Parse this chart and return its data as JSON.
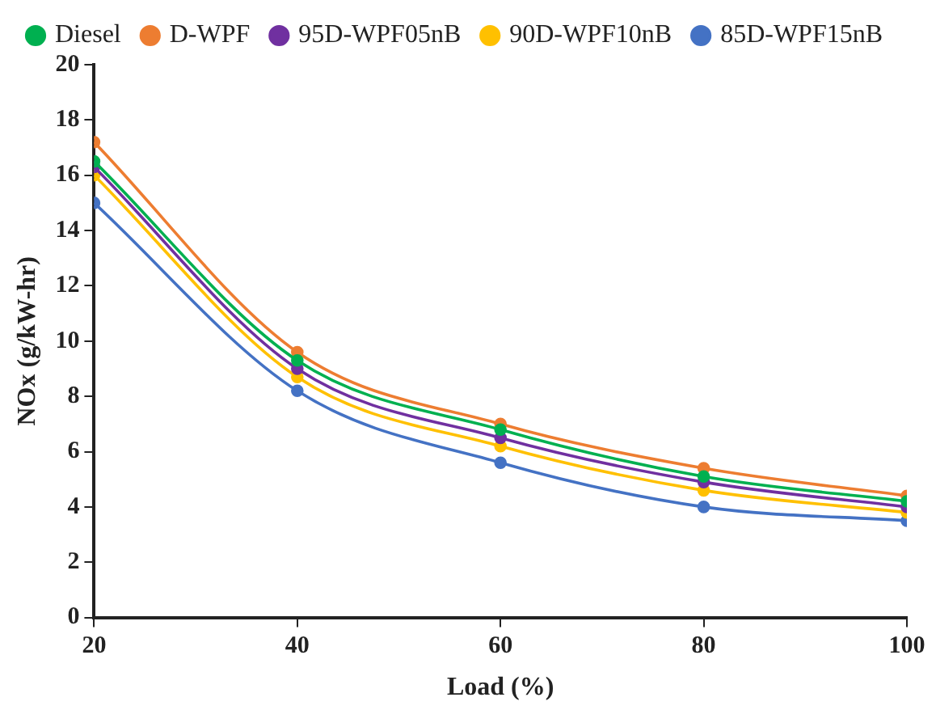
{
  "chart_data": {
    "type": "line",
    "xlabel": "Load (%)",
    "ylabel": "NOx (g/kW-hr)",
    "x": [
      20,
      40,
      60,
      80,
      100
    ],
    "xlim": [
      20,
      100
    ],
    "xticks": [
      20,
      40,
      60,
      80,
      100
    ],
    "ylim": [
      0,
      20
    ],
    "yticks": [
      0,
      2,
      4,
      6,
      8,
      10,
      12,
      14,
      16,
      18,
      20
    ],
    "grid": false,
    "legend": "top",
    "marker": "circle",
    "line_style": "solid",
    "series": [
      {
        "name": "Diesel",
        "color": "#00b050",
        "values": [
          16.5,
          9.3,
          6.8,
          5.1,
          4.2
        ]
      },
      {
        "name": "D-WPF",
        "color": "#ed7d31",
        "values": [
          17.2,
          9.6,
          7.0,
          5.4,
          4.4
        ]
      },
      {
        "name": "95D-WPF05nB",
        "color": "#7030a0",
        "values": [
          16.3,
          9.0,
          6.5,
          4.9,
          4.0
        ]
      },
      {
        "name": "90D-WPF10nB",
        "color": "#ffc000",
        "values": [
          16.0,
          8.7,
          6.2,
          4.6,
          3.8
        ]
      },
      {
        "name": "85D-WPF15nB",
        "color": "#4472c4",
        "values": [
          15.0,
          8.2,
          5.6,
          4.0,
          3.5
        ]
      }
    ]
  }
}
